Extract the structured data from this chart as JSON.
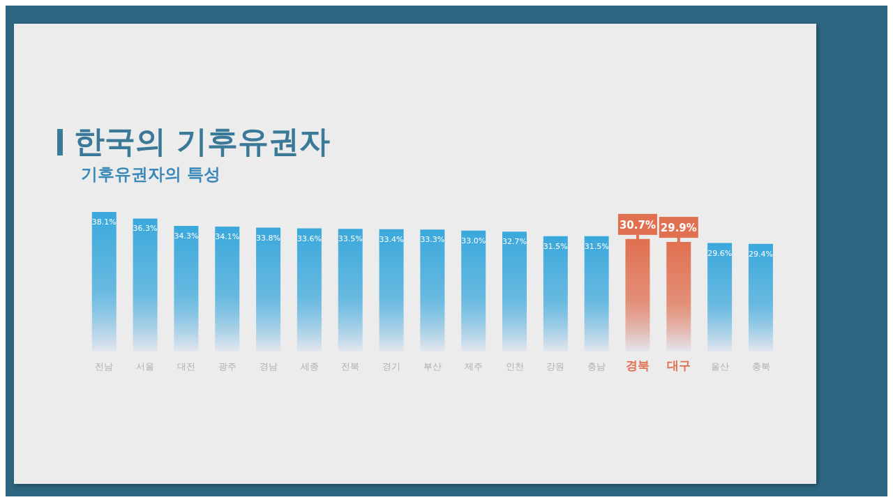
{
  "chart_data": {
    "type": "bar",
    "title": "한국의 기후유권자",
    "subtitle": "기후유권자의 특성",
    "categories": [
      "전남",
      "서울",
      "대전",
      "광주",
      "경남",
      "세종",
      "전북",
      "경기",
      "부산",
      "제주",
      "인천",
      "강원",
      "충남",
      "경북",
      "대구",
      "울산",
      "충북"
    ],
    "values": [
      38.1,
      36.3,
      34.3,
      34.1,
      33.8,
      33.6,
      33.5,
      33.4,
      33.3,
      33.0,
      32.7,
      31.5,
      31.5,
      30.7,
      29.9,
      29.6,
      29.4
    ],
    "color": "#3aa8dc",
    "colors": [
      "#3aa8dc",
      "#3aa8dc",
      "#3aa8dc",
      "#3aa8dc",
      "#3aa8dc",
      "#3aa8dc",
      "#3aa8dc",
      "#3aa8dc",
      "#3aa8dc",
      "#3aa8dc",
      "#3aa8dc",
      "#3aa8dc",
      "#3aa8dc",
      "#e07050",
      "#e07050",
      "#3aa8dc",
      "#3aa8dc"
    ],
    "value_labels": [
      "38.1%",
      "36.3%",
      "34.3%",
      "34.1%",
      "33.8%",
      "33.6%",
      "33.5%",
      "33.4%",
      "33.3%",
      "33.0%",
      "32.7%",
      "31.5%",
      "31.5%",
      "30.7%",
      "29.9%",
      "29.6%",
      "29.4%"
    ],
    "legend": false,
    "grid": false
  }
}
